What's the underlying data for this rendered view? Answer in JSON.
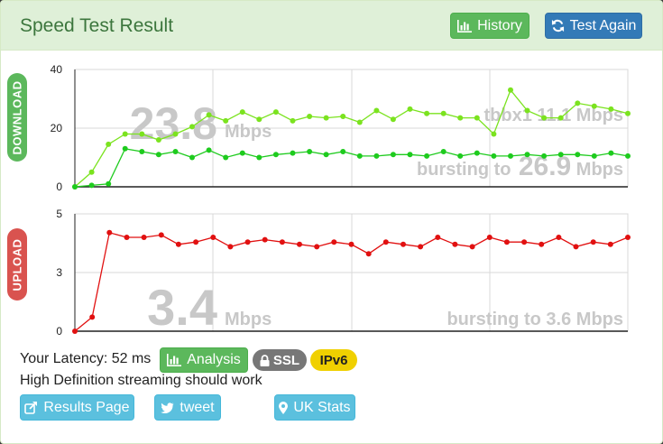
{
  "header": {
    "title": "Speed Test Result",
    "history_label": "History",
    "test_again_label": "Test Again"
  },
  "side_labels": {
    "download": "DOWNLOAD",
    "upload": "UPLOAD"
  },
  "download": {
    "value": "23.8",
    "unit": "Mbps",
    "provider_text": "tbbx1 11.1 Mbps",
    "bursting_prefix": "bursting to",
    "bursting_value": "26.9",
    "bursting_unit": "Mbps",
    "yticks": [
      "40",
      "20",
      "0"
    ]
  },
  "upload": {
    "value": "3.4",
    "unit": "Mbps",
    "bursting_text": "bursting to 3.6 Mbps",
    "yticks": [
      "5",
      "3",
      "0"
    ]
  },
  "info": {
    "latency_text": "Your Latency: 52 ms",
    "analysis_label": "Analysis",
    "ssl_label": "SSL",
    "ipv6_label": "IPv6",
    "streaming_text": "High Definition streaming should work"
  },
  "buttons": {
    "results_page": "Results Page",
    "tweet": "tweet",
    "uk_stats": "UK Stats"
  },
  "colors": {
    "header_bg": "#dff0d8",
    "title": "#3c763d",
    "download_series": "#7be31f",
    "download_series2": "#1ecb1e",
    "upload_series": "#e11010",
    "big_value": "#c8c8c8",
    "success": "#5cb85c",
    "primary": "#337ab7",
    "info": "#5bc0de",
    "danger": "#d9534f"
  },
  "chart_data": [
    {
      "type": "line",
      "name": "download",
      "ylim": [
        0,
        40
      ],
      "yticks": [
        0,
        20,
        40
      ],
      "series": [
        {
          "values": [
            0,
            5,
            14.5,
            18,
            18,
            16,
            18,
            20.5,
            24.5,
            22.5,
            25.5,
            23,
            25.5,
            22.5,
            24,
            23.5,
            24,
            22,
            26,
            23,
            26.5,
            25,
            25,
            23.5,
            23.5,
            18,
            33,
            26,
            23.5,
            23.5,
            28.5,
            27.5,
            26.5,
            25
          ]
        },
        {
          "values": [
            0,
            0.5,
            1,
            13,
            12,
            11,
            12,
            10,
            12.5,
            10,
            11.5,
            10,
            11,
            11.5,
            12,
            11,
            12,
            10.5,
            10.5,
            11,
            11,
            10.5,
            12,
            10.5,
            11.5,
            10.5,
            10.5,
            11,
            10.5,
            11,
            11,
            10.5,
            11.5,
            10.5
          ]
        }
      ]
    },
    {
      "type": "line",
      "name": "upload",
      "ylim": [
        0,
        5
      ],
      "yticks": [
        0,
        3,
        5
      ],
      "series": [
        {
          "values": [
            0,
            0.6,
            4.2,
            4.0,
            4.0,
            4.1,
            3.7,
            3.8,
            4.0,
            3.6,
            3.8,
            3.9,
            3.8,
            3.7,
            3.6,
            3.8,
            3.7,
            3.3,
            3.8,
            3.7,
            3.6,
            4.0,
            3.7,
            3.6,
            4.0,
            3.8,
            3.8,
            3.7,
            4.0,
            3.6,
            3.8,
            3.7,
            4.0
          ]
        }
      ]
    }
  ]
}
